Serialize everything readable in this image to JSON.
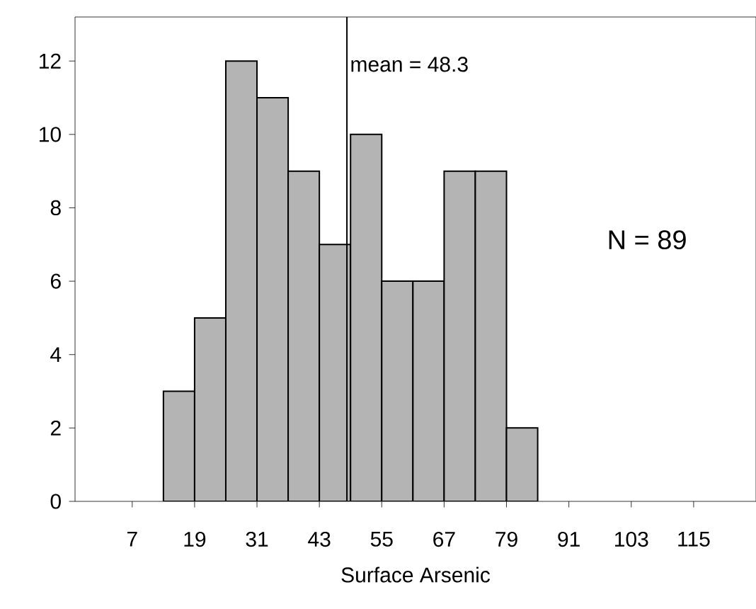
{
  "chart_data": {
    "type": "histogram",
    "xlabel": "Surface Arsenic",
    "bins": [
      13,
      19,
      25,
      31,
      37,
      43,
      49,
      55,
      61,
      67,
      73,
      79,
      85
    ],
    "values": [
      3,
      5,
      12,
      11,
      9,
      7,
      10,
      6,
      6,
      9,
      9,
      2
    ],
    "color": "#b4b4b4",
    "xlim": [
      -4,
      127
    ],
    "xticks": [
      7,
      19,
      31,
      43,
      55,
      67,
      79,
      91,
      103,
      115
    ],
    "ylim": [
      0,
      13.2
    ],
    "yticks": [
      0,
      2,
      4,
      6,
      8,
      10,
      12
    ],
    "ref_lines": [
      {
        "axis": "x",
        "value": 48.3,
        "label": "mean = 48.3",
        "color": "#000000"
      }
    ],
    "annotations": [
      "N = 89"
    ],
    "grid": false
  }
}
